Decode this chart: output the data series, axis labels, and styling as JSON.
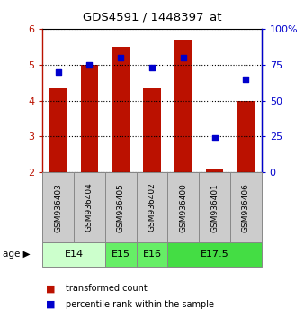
{
  "title": "GDS4591 / 1448397_at",
  "samples": [
    "GSM936403",
    "GSM936404",
    "GSM936405",
    "GSM936402",
    "GSM936400",
    "GSM936401",
    "GSM936406"
  ],
  "transformed_count": [
    4.35,
    5.0,
    5.5,
    4.35,
    5.7,
    2.1,
    4.0
  ],
  "percentile_rank": [
    70,
    75,
    80,
    73,
    80,
    24,
    65
  ],
  "age_groups": [
    {
      "label": "E14",
      "start": 0,
      "end": 2,
      "color": "#ccffcc"
    },
    {
      "label": "E15",
      "start": 2,
      "end": 3,
      "color": "#66ee66"
    },
    {
      "label": "E16",
      "start": 3,
      "end": 4,
      "color": "#66ee66"
    },
    {
      "label": "E17.5",
      "start": 4,
      "end": 7,
      "color": "#44dd44"
    }
  ],
  "bar_color": "#bb1100",
  "dot_color": "#0000cc",
  "ylim_left": [
    2,
    6
  ],
  "ylim_right": [
    0,
    100
  ],
  "yticks_left": [
    2,
    3,
    4,
    5,
    6
  ],
  "yticks_right": [
    0,
    25,
    50,
    75,
    100
  ],
  "bar_width": 0.55,
  "base_value": 2.0,
  "sample_box_color": "#cccccc",
  "sample_box_edge": "#888888",
  "plot_bg": "#ffffff",
  "fig_bg": "#ffffff"
}
